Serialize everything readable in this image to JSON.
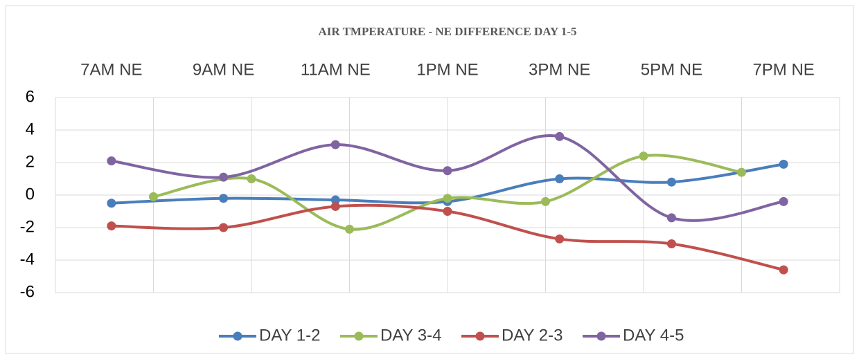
{
  "chart_data": {
    "type": "line",
    "title": "AIR TMPERATURE - NE DIFFERENCE DAY 1-5",
    "categories": [
      "7AM NE",
      "9AM NE",
      "11AM NE",
      "1PM NE",
      "3PM NE",
      "5PM NE",
      "7PM NE"
    ],
    "series": [
      {
        "name": "DAY 1-2",
        "color": "#4a7ebb",
        "values": [
          -0.5,
          -0.2,
          -0.3,
          -0.4,
          1.0,
          0.8,
          1.9
        ]
      },
      {
        "name": "DAY 3-4",
        "color": "#9bbb59",
        "axis": "x2",
        "values": [
          -0.1,
          1.0,
          -2.1,
          -0.2,
          -0.4,
          2.4,
          1.4
        ]
      },
      {
        "name": "DAY 2-3",
        "color": "#c0504d",
        "values": [
          -1.9,
          -2.0,
          -0.7,
          -1.0,
          -2.7,
          -3.0,
          -4.6
        ]
      },
      {
        "name": "DAY 4-5",
        "color": "#8064a2",
        "values": [
          2.1,
          1.1,
          3.1,
          1.5,
          3.6,
          -1.4,
          -0.4
        ]
      }
    ],
    "ylim": [
      -6,
      6
    ],
    "yticks": [
      -6,
      -4,
      -2,
      0,
      2,
      4,
      6
    ],
    "grid": true,
    "smooth": true,
    "legend": "bottom"
  }
}
